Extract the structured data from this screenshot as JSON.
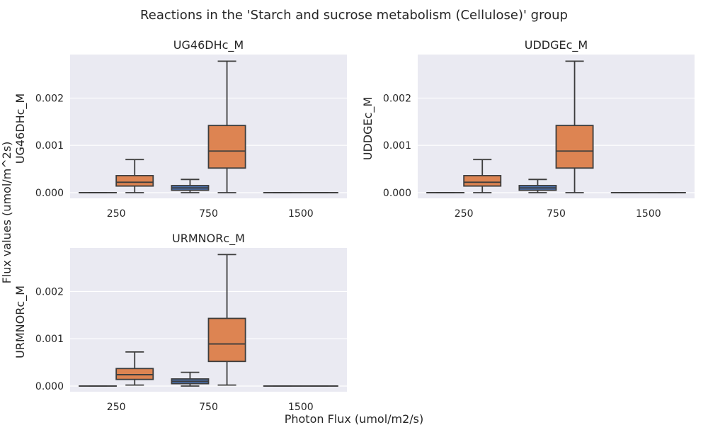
{
  "figure": {
    "title": "Reactions in the 'Starch and sucrose metabolism (Cellulose)' group",
    "xlabel": "Photon Flux (umol/m2/s)",
    "ylabel": "Flux values (umol/m^2s)"
  },
  "colors": {
    "background": "#eaeaf2",
    "grid": "#ffffff",
    "series_blue": "#4c72b0",
    "series_orange": "#dd8452",
    "whisker": "#3d3d3d"
  },
  "chart_data": [
    {
      "type": "box",
      "title": "UG46DHc_M",
      "ylabel": "UG46DHc_M",
      "categories": [
        "250",
        "750",
        "1500"
      ],
      "yticks": [
        "0.000",
        "0.001",
        "0.002"
      ],
      "ytick_values": [
        0.0,
        0.001,
        0.002
      ],
      "ylim": [
        -0.00012,
        0.00292
      ],
      "boxes": [
        {
          "category": "250",
          "color": "blue",
          "min": 0.0,
          "q1": 0.0,
          "median": 0.0,
          "q3": 0.0,
          "max": 0.0
        },
        {
          "category": "250",
          "color": "orange",
          "min": 0.0,
          "q1": 0.00014,
          "median": 0.00022,
          "q3": 0.00036,
          "max": 0.0007
        },
        {
          "category": "750",
          "color": "blue",
          "min": 0.0,
          "q1": 5e-05,
          "median": 0.0001,
          "q3": 0.00015,
          "max": 0.00028
        },
        {
          "category": "750",
          "color": "orange",
          "min": 0.0,
          "q1": 0.00052,
          "median": 0.00088,
          "q3": 0.00142,
          "max": 0.00278
        },
        {
          "category": "1500",
          "color": "blue",
          "min": 0.0,
          "q1": 0.0,
          "median": 0.0,
          "q3": 0.0,
          "max": 0.0
        },
        {
          "category": "1500",
          "color": "orange",
          "min": 0.0,
          "q1": 0.0,
          "median": 0.0,
          "q3": 0.0,
          "max": 0.0
        }
      ]
    },
    {
      "type": "box",
      "title": "UDDGEc_M",
      "ylabel": "UDDGEc_M",
      "categories": [
        "250",
        "750",
        "1500"
      ],
      "yticks": [
        "0.000",
        "0.001",
        "0.002"
      ],
      "ytick_values": [
        0.0,
        0.001,
        0.002
      ],
      "ylim": [
        -0.00012,
        0.00292
      ],
      "boxes": [
        {
          "category": "250",
          "color": "blue",
          "min": 0.0,
          "q1": 0.0,
          "median": 0.0,
          "q3": 0.0,
          "max": 0.0
        },
        {
          "category": "250",
          "color": "orange",
          "min": 0.0,
          "q1": 0.00014,
          "median": 0.00022,
          "q3": 0.00036,
          "max": 0.0007
        },
        {
          "category": "750",
          "color": "blue",
          "min": 0.0,
          "q1": 5e-05,
          "median": 0.0001,
          "q3": 0.00015,
          "max": 0.00028
        },
        {
          "category": "750",
          "color": "orange",
          "min": 0.0,
          "q1": 0.00052,
          "median": 0.00088,
          "q3": 0.00142,
          "max": 0.00278
        },
        {
          "category": "1500",
          "color": "blue",
          "min": 0.0,
          "q1": 0.0,
          "median": 0.0,
          "q3": 0.0,
          "max": 0.0
        },
        {
          "category": "1500",
          "color": "orange",
          "min": 0.0,
          "q1": 0.0,
          "median": 0.0,
          "q3": 0.0,
          "max": 0.0
        }
      ]
    },
    {
      "type": "box",
      "title": "URMNORc_M",
      "ylabel": "URMNORc_M",
      "categories": [
        "250",
        "750",
        "1500"
      ],
      "yticks": [
        "0.000",
        "0.001",
        "0.002"
      ],
      "ytick_values": [
        0.0,
        0.001,
        0.002
      ],
      "ylim": [
        -0.00012,
        0.00292
      ],
      "boxes": [
        {
          "category": "250",
          "color": "blue",
          "min": 0.0,
          "q1": 0.0,
          "median": 0.0,
          "q3": 0.0,
          "max": 0.0
        },
        {
          "category": "250",
          "color": "orange",
          "min": 2e-05,
          "q1": 0.00014,
          "median": 0.00024,
          "q3": 0.00037,
          "max": 0.00072
        },
        {
          "category": "750",
          "color": "blue",
          "min": 0.0,
          "q1": 5e-05,
          "median": 0.0001,
          "q3": 0.00015,
          "max": 0.00029
        },
        {
          "category": "750",
          "color": "orange",
          "min": 2e-05,
          "q1": 0.00052,
          "median": 0.00089,
          "q3": 0.00143,
          "max": 0.00278
        },
        {
          "category": "1500",
          "color": "blue",
          "min": 0.0,
          "q1": 0.0,
          "median": 0.0,
          "q3": 0.0,
          "max": 0.0
        },
        {
          "category": "1500",
          "color": "orange",
          "min": 0.0,
          "q1": 0.0,
          "median": 0.0,
          "q3": 0.0,
          "max": 0.0
        }
      ]
    }
  ]
}
